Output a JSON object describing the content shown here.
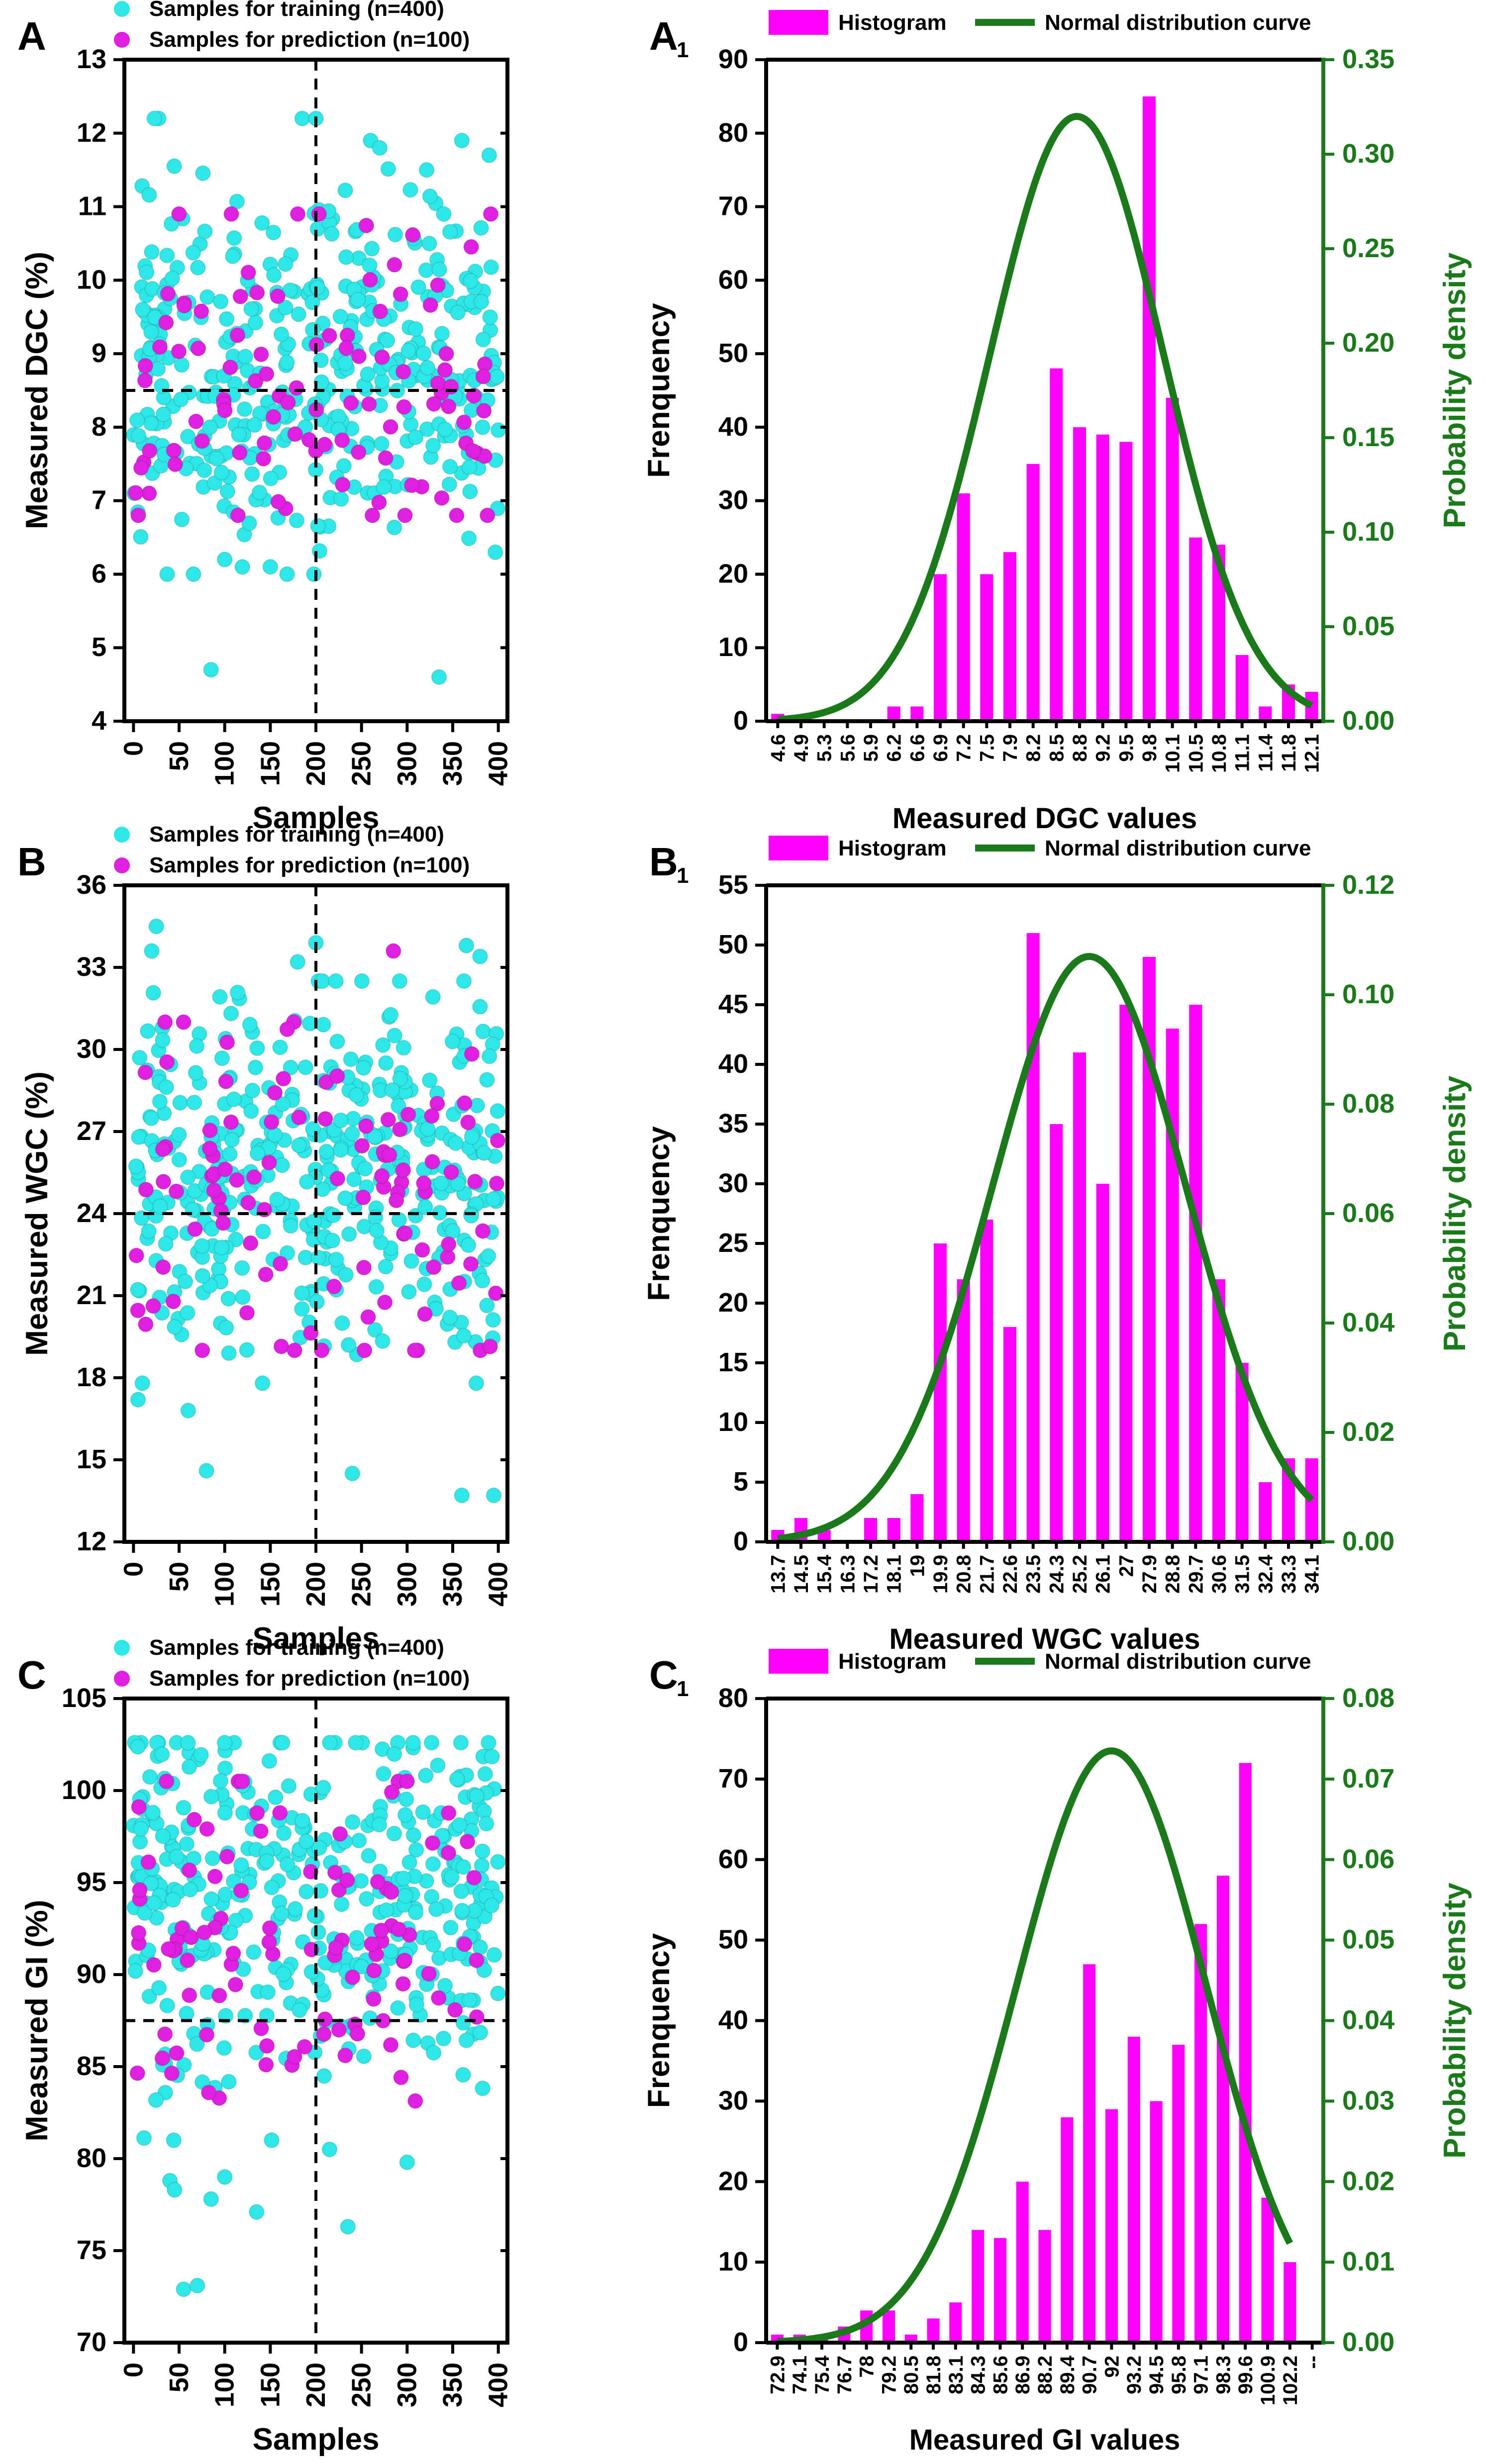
{
  "colors": {
    "training": "#2ee8e8",
    "prediction": "#e020e0",
    "histogram": "#ff00ff",
    "curve": "#1a7a1a",
    "axis_right": "#1a7a1a"
  },
  "scatter_legend": {
    "training": "Samples for training (n=400)",
    "prediction": "Samples for prediction (n=100)"
  },
  "hist_legend": {
    "histogram": "Histogram",
    "curve": "Normal distribution curve"
  },
  "chart_data": [
    {
      "type": "scatter",
      "panel_label": "A",
      "ylabel": "Measured DGC (%)",
      "xlabel": "Samples",
      "xlim": [
        -10,
        410
      ],
      "ylim": [
        4,
        13
      ],
      "xticks": [
        0,
        50,
        100,
        150,
        200,
        250,
        300,
        350,
        400
      ],
      "yticks": [
        4,
        5,
        6,
        7,
        8,
        9,
        10,
        11,
        12,
        13
      ],
      "threshold_x": 200,
      "threshold_y": 8.5,
      "series": [
        {
          "name": "Samples for training (n=400)",
          "seed": 11,
          "count": 400,
          "mean": 8.8,
          "sd": 1.25,
          "clip": [
            6.0,
            12.2
          ],
          "extra": [
            [
              85,
              4.7
            ],
            [
              335,
              4.6
            ],
            [
              185,
              12.2
            ],
            [
              200,
              12.2
            ],
            [
              260,
              11.9
            ],
            [
              270,
              11.8
            ],
            [
              360,
              11.9
            ],
            [
              390,
              11.7
            ],
            [
              100,
              6.2
            ],
            [
              150,
              6.1
            ]
          ]
        },
        {
          "name": "Samples for prediction (n=100)",
          "seed": 29,
          "count": 100,
          "mean": 8.6,
          "sd": 1.15,
          "clip": [
            6.8,
            10.9
          ],
          "extra": []
        }
      ]
    },
    {
      "type": "bar+line",
      "panel_label": "A",
      "panel_sub": "1",
      "xlabel": "Measured DGC values",
      "ylabel": "Frenquency",
      "ylabel_right": "Probability density",
      "ylim": [
        0,
        90
      ],
      "ylim_right": [
        0,
        0.35
      ],
      "yticks": [
        0,
        10,
        20,
        30,
        40,
        50,
        60,
        70,
        80,
        90
      ],
      "yticks_right": [
        "0.00",
        "0.05",
        "0.10",
        "0.15",
        "0.20",
        "0.25",
        "0.30",
        "0.35"
      ],
      "categories": [
        "4.6",
        "4.9",
        "5.3",
        "5.6",
        "5.9",
        "6.2",
        "6.6",
        "6.9",
        "7.2",
        "7.5",
        "7.9",
        "8.2",
        "8.5",
        "8.8",
        "9.2",
        "9.5",
        "9.8",
        "10.1",
        "10.5",
        "10.8",
        "11.1",
        "11.4",
        "11.8",
        "12.1"
      ],
      "values": [
        1,
        0,
        0,
        0,
        0,
        2,
        2,
        20,
        31,
        20,
        23,
        35,
        48,
        40,
        39,
        38,
        85,
        44,
        25,
        24,
        9,
        2,
        5,
        4
      ],
      "curve": {
        "mean": 8.8,
        "sd": 1.22,
        "peak_density": 0.32,
        "x_start": 4.6,
        "x_end": 12.1
      }
    },
    {
      "type": "scatter",
      "panel_label": "B",
      "ylabel": "Measured WGC (%)",
      "xlabel": "Samples",
      "xlim": [
        -10,
        410
      ],
      "ylim": [
        12,
        36
      ],
      "xticks": [
        0,
        50,
        100,
        150,
        200,
        250,
        300,
        350,
        400
      ],
      "yticks": [
        12,
        15,
        18,
        21,
        24,
        27,
        30,
        33,
        36
      ],
      "threshold_x": 200,
      "threshold_y": 24,
      "series": [
        {
          "name": "Samples for training (n=400)",
          "seed": 41,
          "count": 400,
          "mean": 25.2,
          "sd": 3.4,
          "clip": [
            17.8,
            32.5
          ],
          "extra": [
            [
              5,
              17.2
            ],
            [
              20,
              33.6
            ],
            [
              25,
              34.5
            ],
            [
              80,
              14.6
            ],
            [
              60,
              16.8
            ],
            [
              240,
              14.5
            ],
            [
              360,
              13.7
            ],
            [
              395,
              13.7
            ],
            [
              200,
              33.9
            ],
            [
              365,
              33.8
            ],
            [
              380,
              33.4
            ],
            [
              180,
              33.2
            ]
          ]
        },
        {
          "name": "Samples for prediction (n=100)",
          "seed": 53,
          "count": 100,
          "mean": 24.6,
          "sd": 3.3,
          "clip": [
            19.0,
            31.0
          ],
          "extra": [
            [
              285,
              33.6
            ]
          ]
        }
      ]
    },
    {
      "type": "bar+line",
      "panel_label": "B",
      "panel_sub": "1",
      "xlabel": "Measured WGC values",
      "ylabel": "Frenquency",
      "ylabel_right": "Probability density",
      "ylim": [
        0,
        55
      ],
      "ylim_right": [
        0,
        0.12
      ],
      "yticks": [
        0,
        5,
        10,
        15,
        20,
        25,
        30,
        35,
        40,
        45,
        50,
        55
      ],
      "yticks_right": [
        "0.00",
        "0.02",
        "0.04",
        "0.06",
        "0.08",
        "0.10",
        "0.12"
      ],
      "categories": [
        "13.7",
        "14.5",
        "15.4",
        "16.3",
        "17.2",
        "18.1",
        "19",
        "19.9",
        "20.8",
        "21.7",
        "22.6",
        "23.5",
        "24.3",
        "25.2",
        "26.1",
        "27",
        "27.9",
        "28.8",
        "29.7",
        "30.6",
        "31.5",
        "32.4",
        "33.3",
        "34.1"
      ],
      "values": [
        1,
        2,
        1,
        0,
        2,
        2,
        4,
        25,
        22,
        27,
        18,
        51,
        35,
        41,
        30,
        45,
        49,
        43,
        45,
        22,
        15,
        5,
        7,
        7
      ],
      "curve": {
        "mean": 25.6,
        "sd": 3.7,
        "peak_density": 0.107,
        "x_start": 13.7,
        "x_end": 34.1
      }
    },
    {
      "type": "scatter",
      "panel_label": "C",
      "ylabel": "Measured GI (%)",
      "xlabel": "Samples",
      "xlim": [
        -10,
        410
      ],
      "ylim": [
        70,
        105
      ],
      "xticks": [
        0,
        50,
        100,
        150,
        200,
        250,
        300,
        350,
        400
      ],
      "yticks": [
        70,
        75,
        80,
        85,
        90,
        95,
        100,
        105
      ],
      "threshold_x": 200,
      "threshold_y": 87.5,
      "series": [
        {
          "name": "Samples for training (n=400)",
          "seed": 67,
          "count": 400,
          "mean": 94.5,
          "sd": 4.6,
          "clip": [
            81.0,
            102.6
          ],
          "extra": [
            [
              40,
              78.8
            ],
            [
              45,
              78.3
            ],
            [
              55,
              72.9
            ],
            [
              70,
              73.1
            ],
            [
              85,
              77.8
            ],
            [
              135,
              77.1
            ],
            [
              100,
              79.0
            ],
            [
              235,
              76.3
            ],
            [
              215,
              80.5
            ],
            [
              300,
              79.8
            ]
          ]
        },
        {
          "name": "Samples for prediction (n=100)",
          "seed": 83,
          "count": 100,
          "mean": 92.4,
          "sd": 4.8,
          "clip": [
            82.5,
            100.5
          ],
          "extra": []
        }
      ]
    },
    {
      "type": "bar+line",
      "panel_label": "C",
      "panel_sub": "1",
      "xlabel": "Measured GI values",
      "ylabel": "Frenquency",
      "ylabel_right": "Probability density",
      "ylim": [
        0,
        80
      ],
      "ylim_right": [
        0,
        0.08
      ],
      "yticks": [
        0,
        10,
        20,
        30,
        40,
        50,
        60,
        70,
        80
      ],
      "yticks_right": [
        "0.00",
        "0.01",
        "0.02",
        "0.03",
        "0.04",
        "0.05",
        "0.06",
        "0.07",
        "0.08"
      ],
      "categories": [
        "72.9",
        "74.1",
        "75.4",
        "76.7",
        "78",
        "79.2",
        "80.5",
        "81.8",
        "83.1",
        "84.3",
        "85.6",
        "86.9",
        "88.2",
        "89.4",
        "90.7",
        "92",
        "93.2",
        "94.5",
        "95.8",
        "97.1",
        "98.3",
        "99.6",
        "100.9",
        "102.2",
        "--"
      ],
      "values": [
        1,
        1,
        1,
        2,
        4,
        4,
        1,
        3,
        5,
        14,
        13,
        20,
        14,
        28,
        47,
        29,
        38,
        30,
        37,
        52,
        58,
        72,
        18,
        10,
        0
      ],
      "curve": {
        "mean": 92.0,
        "sd": 5.4,
        "peak_density": 0.0735,
        "x_start": 72.9,
        "x_end": 102.2
      }
    }
  ]
}
